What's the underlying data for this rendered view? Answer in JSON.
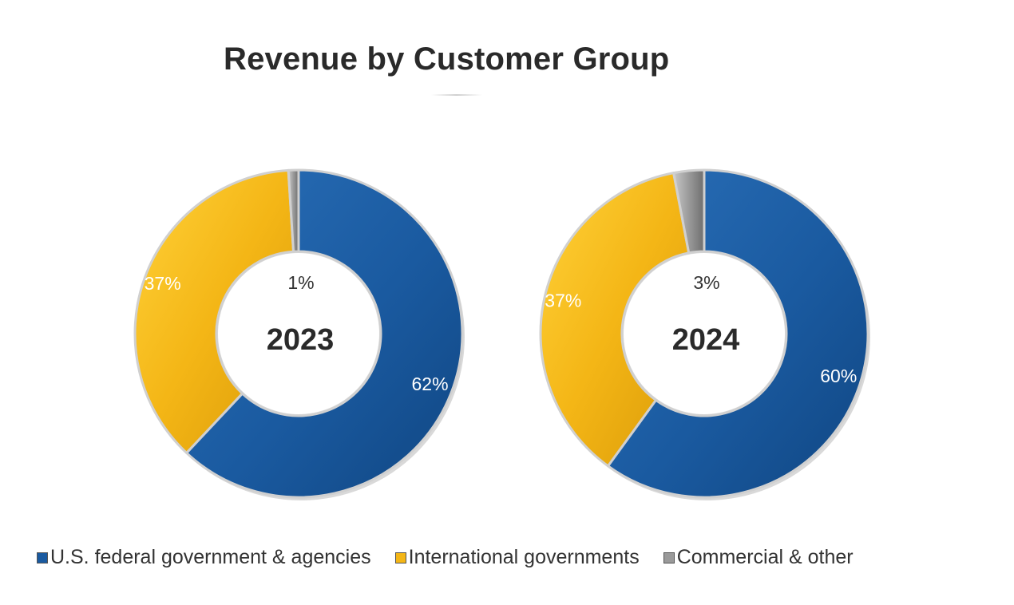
{
  "chart_data": {
    "type": "pie",
    "title": "Revenue by Customer Group",
    "legend_position": "bottom",
    "categories": [
      "U.S. federal government & agencies",
      "International governments",
      "Commercial & other"
    ],
    "colors": [
      "#1a5aa0",
      "#f4b616",
      "#9a9a9a"
    ],
    "charts": [
      {
        "center_label": "2023",
        "values": [
          62,
          37,
          1
        ],
        "labels": [
          "62%",
          "37%",
          "1%"
        ]
      },
      {
        "center_label": "2024",
        "values": [
          60,
          37,
          3
        ],
        "labels": [
          "60%",
          "37%",
          "3%"
        ]
      }
    ]
  }
}
